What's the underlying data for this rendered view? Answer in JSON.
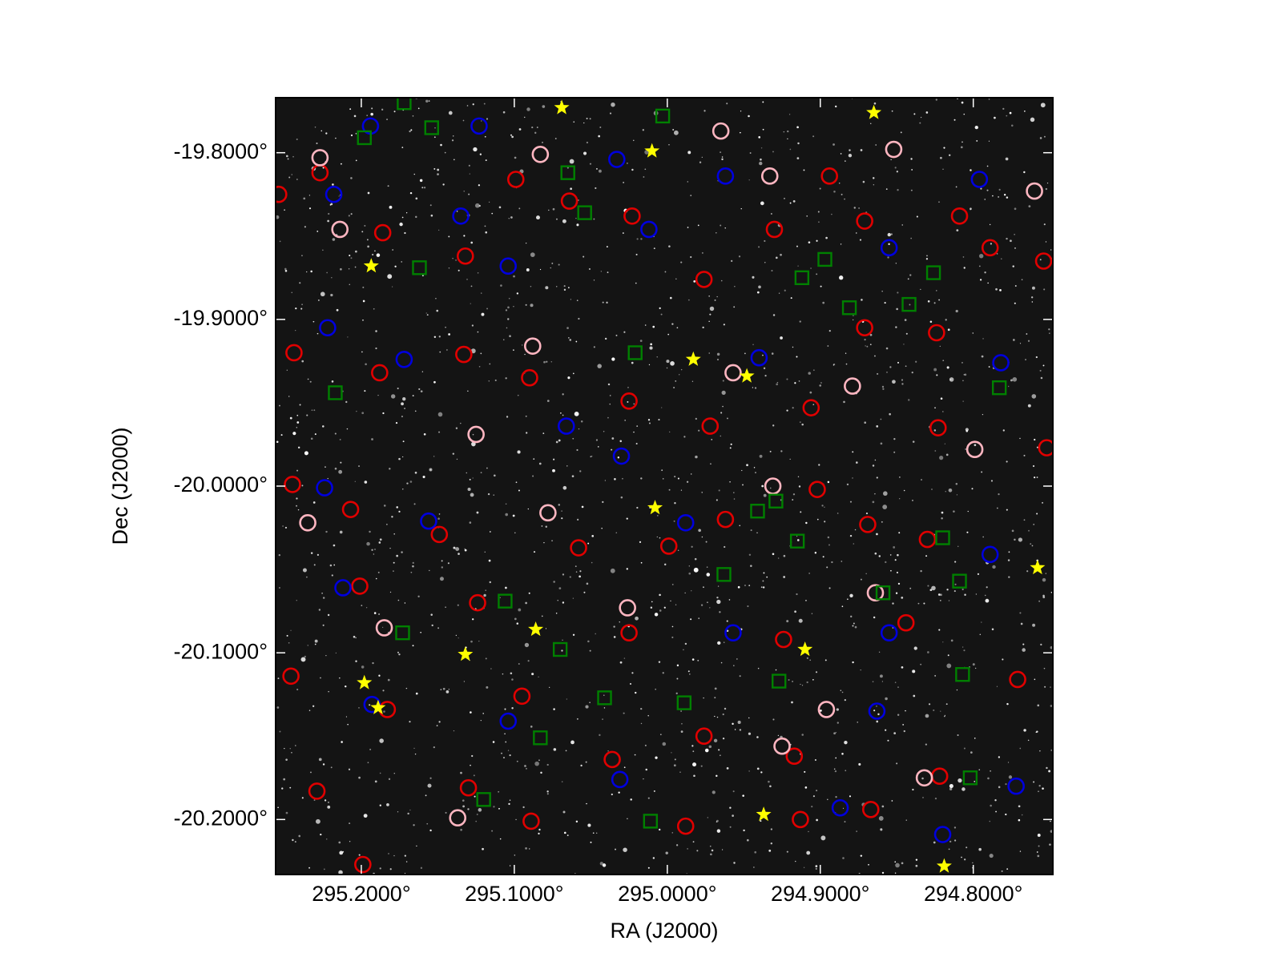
{
  "chart_data": {
    "type": "scatter",
    "xlabel": "RA (J2000)",
    "ylabel": "Dec (J2000)",
    "xlim": [
      295.256,
      294.748
    ],
    "ylim": [
      -20.233,
      -19.767
    ],
    "xticks": [
      {
        "value": 295.2,
        "label": "295.2000°"
      },
      {
        "value": 295.1,
        "label": "295.1000°"
      },
      {
        "value": 295.0,
        "label": "295.0000°"
      },
      {
        "value": 294.9,
        "label": "294.9000°"
      },
      {
        "value": 294.8,
        "label": "294.8000°"
      }
    ],
    "yticks": [
      {
        "value": -19.8,
        "label": "-19.8000°"
      },
      {
        "value": -19.9,
        "label": "-19.9000°"
      },
      {
        "value": -20.0,
        "label": "-20.0000°"
      },
      {
        "value": -20.1,
        "label": "-20.1000°"
      },
      {
        "value": -20.2,
        "label": "-20.2000°"
      }
    ],
    "series": [
      {
        "color": "#e00000",
        "marker": "circle",
        "x": [
          295.254,
          295.227,
          295.186,
          295.132,
          295.099,
          295.064,
          295.023,
          294.976,
          294.93,
          294.894,
          294.871,
          294.824,
          294.809,
          294.789,
          294.754,
          295.244,
          295.188,
          295.133,
          295.09,
          295.025,
          294.972,
          294.906,
          294.871,
          294.823,
          294.752,
          295.245,
          295.207,
          295.149,
          295.058,
          294.999,
          294.962,
          294.902,
          294.869,
          294.83,
          295.201,
          295.124,
          295.025,
          294.924,
          294.844,
          294.771,
          295.246,
          295.183,
          295.095,
          295.036,
          294.976,
          294.917,
          294.867,
          295.229,
          295.13,
          295.089,
          294.988,
          294.913,
          294.822,
          295.199
        ],
        "y": [
          -19.825,
          -19.812,
          -19.848,
          -19.862,
          -19.816,
          -19.829,
          -19.838,
          -19.876,
          -19.846,
          -19.814,
          -19.841,
          -19.908,
          -19.838,
          -19.857,
          -19.865,
          -19.92,
          -19.932,
          -19.921,
          -19.935,
          -19.949,
          -19.964,
          -19.953,
          -19.905,
          -19.965,
          -19.977,
          -19.999,
          -20.014,
          -20.029,
          -20.037,
          -20.036,
          -20.02,
          -20.002,
          -20.023,
          -20.032,
          -20.06,
          -20.07,
          -20.088,
          -20.092,
          -20.082,
          -20.116,
          -20.114,
          -20.134,
          -20.126,
          -20.164,
          -20.15,
          -20.162,
          -20.194,
          -20.183,
          -20.181,
          -20.201,
          -20.204,
          -20.2,
          -20.174,
          -20.227
        ]
      },
      {
        "color": "#ffb6c1",
        "marker": "circle",
        "x": [
          295.227,
          295.214,
          295.083,
          294.965,
          294.933,
          294.852,
          294.76,
          295.088,
          294.957,
          294.879,
          294.799,
          295.125,
          295.235,
          295.078,
          294.931,
          294.864,
          295.185,
          295.026,
          294.896,
          295.137,
          294.925,
          294.832
        ],
        "y": [
          -19.803,
          -19.846,
          -19.801,
          -19.787,
          -19.814,
          -19.798,
          -19.823,
          -19.916,
          -19.932,
          -19.94,
          -19.978,
          -19.969,
          -20.022,
          -20.016,
          -20.0,
          -20.064,
          -20.085,
          -20.073,
          -20.134,
          -20.199,
          -20.156,
          -20.175
        ]
      },
      {
        "color": "#0000dd",
        "marker": "circle",
        "x": [
          295.194,
          295.218,
          295.123,
          295.033,
          294.962,
          294.796,
          295.135,
          295.012,
          294.855,
          295.104,
          295.222,
          295.172,
          294.94,
          294.782,
          295.066,
          295.03,
          295.224,
          295.156,
          294.988,
          294.789,
          295.212,
          294.957,
          294.855,
          295.193,
          295.104,
          294.863,
          295.031,
          294.887,
          294.772,
          294.82
        ],
        "y": [
          -19.784,
          -19.825,
          -19.784,
          -19.804,
          -19.814,
          -19.816,
          -19.838,
          -19.846,
          -19.857,
          -19.868,
          -19.905,
          -19.924,
          -19.923,
          -19.926,
          -19.964,
          -19.982,
          -20.001,
          -20.021,
          -20.022,
          -20.041,
          -20.061,
          -20.088,
          -20.088,
          -20.131,
          -20.141,
          -20.135,
          -20.176,
          -20.193,
          -20.18,
          -20.209
        ]
      },
      {
        "color": "#008000",
        "marker": "square",
        "x": [
          295.198,
          295.172,
          295.154,
          295.065,
          295.054,
          295.162,
          295.003,
          295.021,
          295.217,
          294.783,
          294.912,
          294.897,
          294.881,
          294.842,
          294.826,
          294.941,
          294.929,
          294.915,
          294.963,
          294.859,
          294.82,
          294.809,
          295.106,
          295.173,
          295.07,
          295.041,
          294.989,
          294.927,
          295.083,
          295.12,
          295.011,
          294.802,
          294.807
        ],
        "y": [
          -19.791,
          -19.77,
          -19.785,
          -19.812,
          -19.836,
          -19.869,
          -19.778,
          -19.92,
          -19.944,
          -19.941,
          -19.875,
          -19.864,
          -19.893,
          -19.891,
          -19.872,
          -20.015,
          -20.009,
          -20.033,
          -20.053,
          -20.064,
          -20.031,
          -20.057,
          -20.069,
          -20.088,
          -20.098,
          -20.127,
          -20.13,
          -20.117,
          -20.151,
          -20.188,
          -20.201,
          -20.175,
          -20.113
        ]
      },
      {
        "color": "#ffff00",
        "marker": "star",
        "x": [
          295.069,
          295.01,
          295.1935,
          294.983,
          294.948,
          295.008,
          295.086,
          295.132,
          294.91,
          295.198,
          295.189,
          294.937,
          294.865,
          294.758,
          294.819
        ],
        "y": [
          -19.773,
          -19.799,
          -19.868,
          -19.924,
          -19.934,
          -20.013,
          -20.086,
          -20.101,
          -20.098,
          -20.118,
          -20.133,
          -20.197,
          -19.776,
          -20.049,
          -20.228
        ]
      }
    ]
  }
}
